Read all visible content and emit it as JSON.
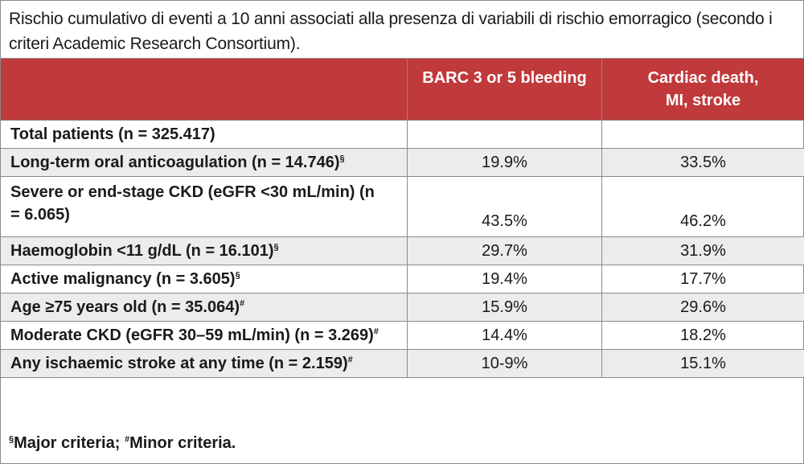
{
  "caption": "Rischio cumulativo di eventi a 10 anni associati alla presenza di variabili di rischio emorragico (secondo i criteri Academic Research Consortium).",
  "columns": [
    "",
    "BARC 3 or 5 bleeding",
    "Cardiac death, MI, stroke"
  ],
  "rows": [
    {
      "label": "Total patients (n = 325.417)",
      "mark": "",
      "bleeding": "",
      "cardiac": ""
    },
    {
      "label": "Long-term oral anticoagulation (n = 14.746)",
      "mark": "§",
      "bleeding": "19.9%",
      "cardiac": "33.5%"
    },
    {
      "label": "Severe or end-stage CKD (eGFR <30 mL/min) (n = 6.065)",
      "mark": "",
      "bleeding": "43.5%",
      "cardiac": "46.2%"
    },
    {
      "label": "Haemoglobin <11 g/dL (n = 16.101)",
      "mark": "§",
      "bleeding": "29.7%",
      "cardiac": "31.9%"
    },
    {
      "label": "Active malignancy (n = 3.605)",
      "mark": "§",
      "bleeding": "19.4%",
      "cardiac": "17.7%"
    },
    {
      "label": "Age ≥75 years old (n = 35.064)",
      "mark": "#",
      "bleeding": "15.9%",
      "cardiac": "29.6%"
    },
    {
      "label": "Moderate CKD (eGFR 30–59 mL/min) (n = 3.269)",
      "mark": "#",
      "bleeding": "14.4%",
      "cardiac": "18.2%"
    },
    {
      "label": "Any ischaemic stroke at any time (n = 2.159)",
      "mark": "#",
      "bleeding": "10-9%",
      "cardiac": "15.1%"
    }
  ],
  "footnote": {
    "major_mark": "§",
    "major_text": "Major criteria; ",
    "minor_mark": "#",
    "minor_text": "Minor criteria."
  },
  "colors": {
    "header_bg": "#c0393b",
    "shade_bg": "#ececec",
    "border": "#8a8a8a"
  }
}
